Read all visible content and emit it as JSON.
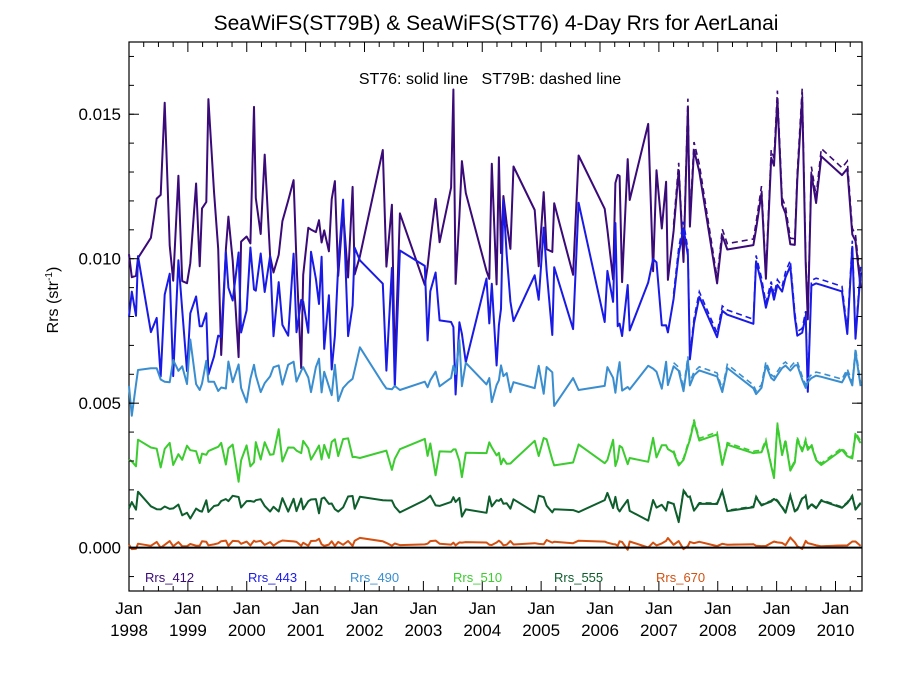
{
  "chart_data": {
    "type": "line",
    "title": "SeaWiFS(ST79B) & SeaWiFS(ST76) 4-Day Rrs for AerLanai",
    "subtitle": "ST76: solid line   ST79B: dashed line",
    "ylabel": {
      "base": "Rrs (str",
      "sup": "-1",
      "close": ")"
    },
    "xlabel": "",
    "xlim": [
      1998.0,
      2010.45
    ],
    "ylim": [
      -0.0015,
      0.0175
    ],
    "yticks": [
      {
        "value": 0.0,
        "label": "0.000"
      },
      {
        "value": 0.005,
        "label": "0.005"
      },
      {
        "value": 0.01,
        "label": "0.010"
      },
      {
        "value": 0.015,
        "label": "0.015"
      }
    ],
    "xticks": [
      {
        "value": 1998,
        "month": "Jan",
        "year": "1998"
      },
      {
        "value": 1999,
        "month": "Jan",
        "year": "1999"
      },
      {
        "value": 2000,
        "month": "Jan",
        "year": "2000"
      },
      {
        "value": 2001,
        "month": "Jan",
        "year": "2001"
      },
      {
        "value": 2002,
        "month": "Jan",
        "year": "2002"
      },
      {
        "value": 2003,
        "month": "Jan",
        "year": "2003"
      },
      {
        "value": 2004,
        "month": "Jan",
        "year": "2004"
      },
      {
        "value": 2005,
        "month": "Jan",
        "year": "2005"
      },
      {
        "value": 2006,
        "month": "Jan",
        "year": "2006"
      },
      {
        "value": 2007,
        "month": "Jan",
        "year": "2007"
      },
      {
        "value": 2008,
        "month": "Jan",
        "year": "2008"
      },
      {
        "value": 2009,
        "month": "Jan",
        "year": "2009"
      },
      {
        "value": 2010,
        "month": "Jan",
        "year": "2010"
      }
    ],
    "zero_line": true,
    "grid": false,
    "legend_position": "bottom",
    "series": [
      {
        "name": "Rrs_412",
        "color": "#3a0a78",
        "base": 0.0114,
        "amp": 0.0024,
        "seed": 11
      },
      {
        "name": "Rrs_443",
        "color": "#1a1ae6",
        "base": 0.0088,
        "amp": 0.0016,
        "seed": 23
      },
      {
        "name": "Rrs_490",
        "color": "#3a8ed0",
        "base": 0.0059,
        "amp": 0.0006,
        "seed": 37
      },
      {
        "name": "Rrs_510",
        "color": "#3ccc30",
        "base": 0.0033,
        "amp": 0.0005,
        "seed": 41
      },
      {
        "name": "Rrs_555",
        "color": "#0d5e2c",
        "base": 0.0015,
        "amp": 0.0003,
        "seed": 53
      },
      {
        "name": "Rrs_670",
        "color": "#d45010",
        "base": 0.00015,
        "amp": 0.0001,
        "seed": 67
      }
    ]
  }
}
